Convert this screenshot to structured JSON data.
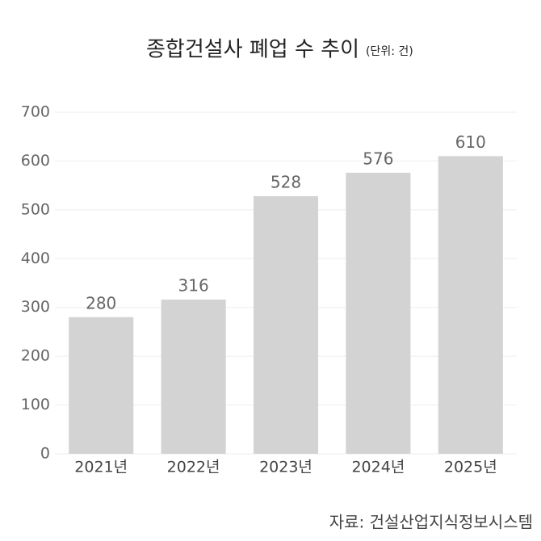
{
  "chart_data": {
    "type": "bar",
    "title": "종합건설사 폐업 수 추이",
    "unit": "(단위: 건)",
    "categories": [
      "2021년",
      "2022년",
      "2023년",
      "2024년",
      "2025년"
    ],
    "values": [
      280,
      316,
      528,
      576,
      610
    ],
    "color": "#d3d3d3",
    "ylim": [
      0,
      700
    ],
    "yticks": [
      0,
      100,
      200,
      300,
      400,
      500,
      600,
      700
    ],
    "grid": true,
    "source": "자료: 건설산업지식정보시스템"
  }
}
